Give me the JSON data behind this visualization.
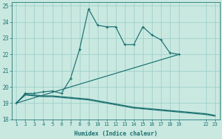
{
  "xlabel": "Humidex (Indice chaleur)",
  "xlim": [
    0.5,
    23.5
  ],
  "ylim": [
    18,
    25.2
  ],
  "yticks": [
    18,
    19,
    20,
    21,
    22,
    23,
    24,
    25
  ],
  "xtick_positions": [
    1,
    2,
    3,
    4,
    5,
    6,
    7,
    8,
    9,
    10,
    11,
    12,
    13,
    14,
    15,
    16,
    17,
    18,
    19,
    22,
    23
  ],
  "xtick_labels": [
    "1",
    "2",
    "3",
    "4",
    "5",
    "6",
    "7",
    "8",
    "9",
    "10",
    "11",
    "12",
    "13",
    "14",
    "15",
    "16",
    "17",
    "18",
    "19",
    "22",
    "23"
  ],
  "bg_color": "#c8e8e0",
  "grid_color": "#9ecfca",
  "line_color": "#1a7070",
  "line1": {
    "x": [
      1,
      2,
      3,
      4,
      5,
      6,
      7,
      8,
      9,
      10,
      11,
      12,
      13,
      14,
      15,
      16,
      17,
      18,
      19
    ],
    "y": [
      19.0,
      19.6,
      19.6,
      19.7,
      19.75,
      19.6,
      20.5,
      22.3,
      24.8,
      23.8,
      23.7,
      23.7,
      22.6,
      22.6,
      23.7,
      23.2,
      22.9,
      22.1,
      22.0
    ]
  },
  "line2": {
    "x": [
      1,
      19
    ],
    "y": [
      19.0,
      22.0
    ]
  },
  "line3a": {
    "x": [
      1,
      2,
      3,
      4,
      5,
      6,
      7,
      8,
      9,
      10,
      11,
      12,
      13,
      14,
      15,
      16,
      17,
      18,
      19,
      22,
      23
    ],
    "y": [
      19.0,
      19.5,
      19.45,
      19.4,
      19.4,
      19.35,
      19.3,
      19.25,
      19.2,
      19.1,
      19.0,
      18.9,
      18.8,
      18.7,
      18.65,
      18.6,
      18.55,
      18.5,
      18.45,
      18.3,
      18.2
    ]
  },
  "line3b": {
    "x": [
      1,
      2,
      3,
      4,
      5,
      6,
      7,
      8,
      9,
      10,
      11,
      12,
      13,
      14,
      15,
      16,
      17,
      18,
      19,
      22,
      23
    ],
    "y": [
      19.0,
      19.55,
      19.5,
      19.45,
      19.45,
      19.4,
      19.35,
      19.3,
      19.25,
      19.15,
      19.05,
      18.95,
      18.85,
      18.75,
      18.7,
      18.65,
      18.6,
      18.55,
      18.5,
      18.35,
      18.25
    ]
  }
}
